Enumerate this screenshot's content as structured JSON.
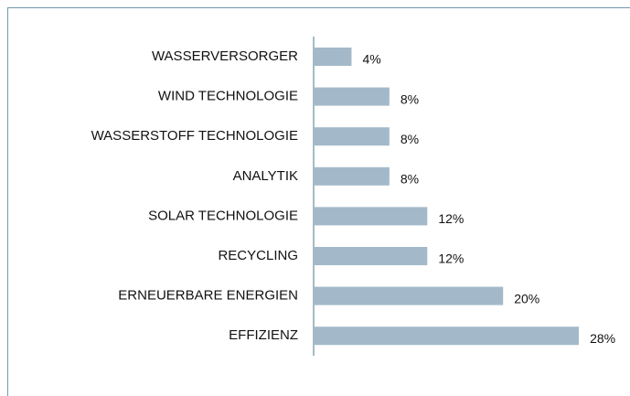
{
  "chart_data": {
    "type": "bar",
    "orientation": "horizontal",
    "categories": [
      "WASSERVERSORGER",
      "WIND TECHNOLOGIE",
      "WASSERSTOFF TECHNOLOGIE",
      "ANALYTIK",
      "SOLAR TECHNOLOGIE",
      "RECYCLING",
      "ERNEUERBARE ENERGIEN",
      "EFFIZIENZ"
    ],
    "values": [
      4,
      8,
      8,
      8,
      12,
      12,
      20,
      28
    ],
    "value_labels": [
      "4%",
      "8%",
      "8%",
      "8%",
      "12%",
      "12%",
      "20%",
      "28%"
    ],
    "color": "#a3b9c9"
  }
}
